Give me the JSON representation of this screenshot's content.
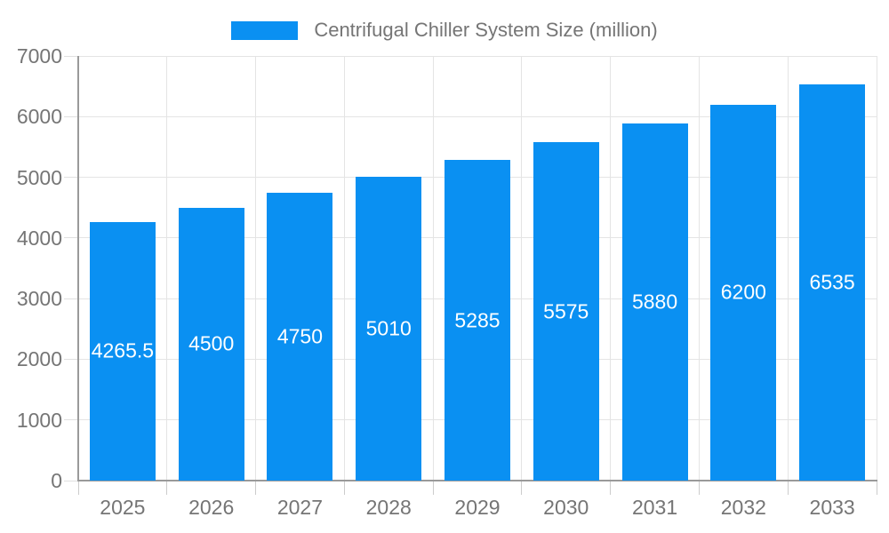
{
  "chart_data": {
    "type": "bar",
    "title": "Centrifugal Chiller System Size (million)",
    "legend_position": "top-center",
    "categories": [
      "2025",
      "2026",
      "2027",
      "2028",
      "2029",
      "2030",
      "2031",
      "2032",
      "2033"
    ],
    "values": [
      4265.5,
      4500,
      4750,
      5010,
      5285,
      5575,
      5880,
      6200,
      6535
    ],
    "data_labels": [
      "4265.5",
      "4500",
      "4750",
      "5010",
      "5285",
      "5575",
      "5880",
      "6200",
      "6535"
    ],
    "xlabel": "",
    "ylabel": "",
    "ylim": [
      0,
      7000
    ],
    "y_ticks": [
      0,
      1000,
      2000,
      3000,
      4000,
      5000,
      6000,
      7000
    ],
    "grid": true,
    "colors": {
      "bar": "#0a90f2",
      "axis_line": "#9a9a9a",
      "gridline": "#e4e4e4",
      "axis_text": "#757575",
      "value_text": "#ffffff",
      "background": "#ffffff"
    }
  }
}
